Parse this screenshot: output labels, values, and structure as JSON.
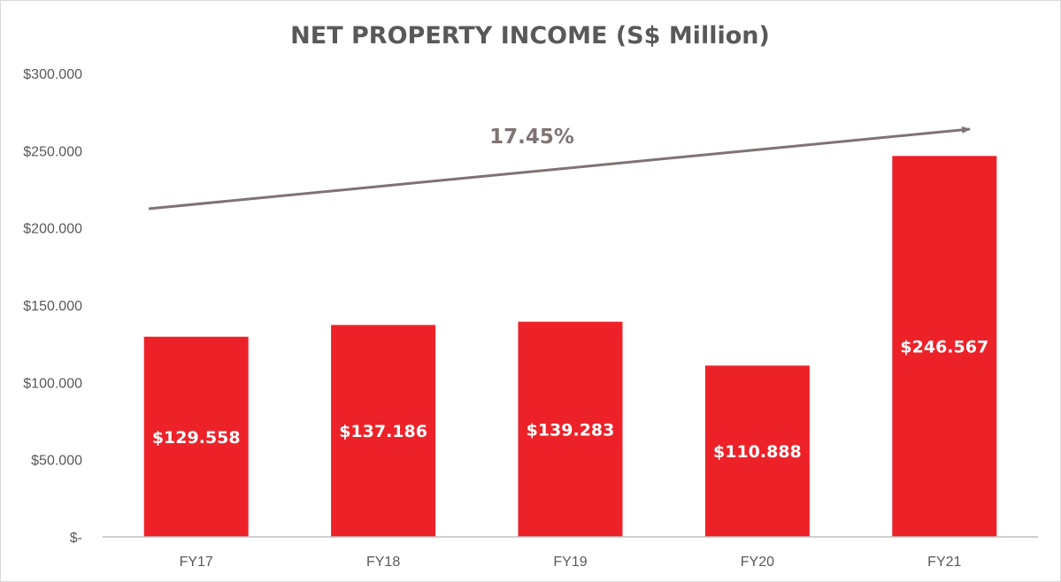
{
  "chart_data": {
    "type": "bar",
    "title": "NET PROPERTY INCOME (S$ Million)",
    "categories": [
      "FY17",
      "FY18",
      "FY19",
      "FY20",
      "FY21"
    ],
    "values": [
      129.558,
      137.186,
      139.283,
      110.888,
      246.567
    ],
    "data_labels": [
      "$129.558",
      "$137.186",
      "$139.283",
      "$110.888",
      "$246.567"
    ],
    "ylim": [
      0,
      300
    ],
    "yticks": [
      0,
      50,
      100,
      150,
      200,
      250,
      300
    ],
    "ytick_labels": [
      "$-",
      "$50.000",
      "$100.000",
      "$150.000",
      "$200.000",
      "$250.000",
      "$300.000"
    ],
    "grid": false,
    "legend": "none",
    "bar_color": "#ed2229",
    "annotation": {
      "text": "17.45%",
      "type": "trend-arrow",
      "color": "#7f7373"
    }
  }
}
